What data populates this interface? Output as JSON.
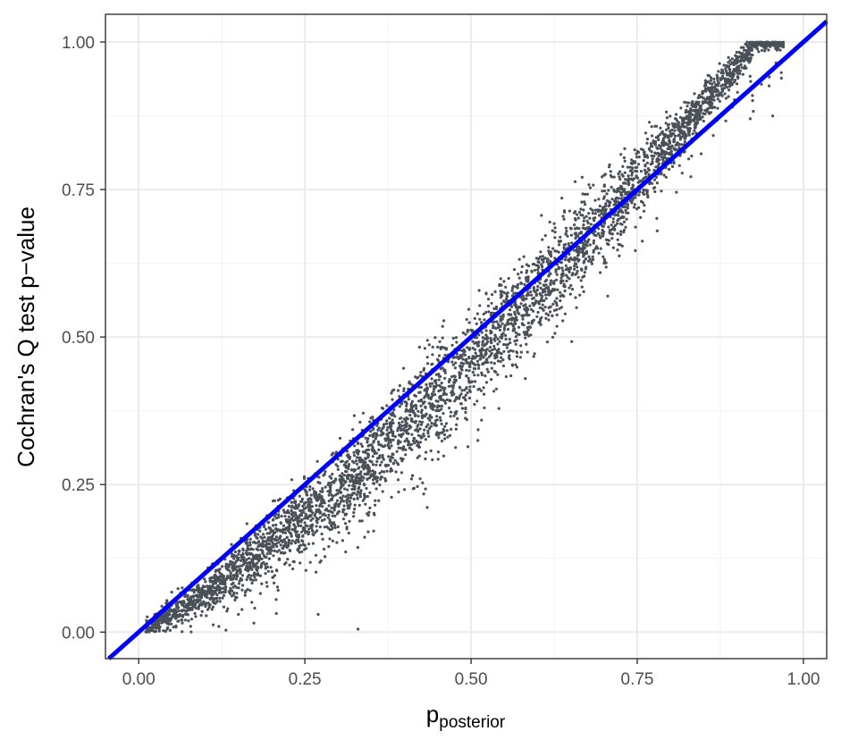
{
  "chart_data": {
    "type": "scatter",
    "title": "",
    "xlabel": {
      "base": "p",
      "subscript": "posterior"
    },
    "ylabel": "Cochran's Q test p−value",
    "xlim": [
      -0.05,
      1.035
    ],
    "ylim": [
      -0.045,
      1.047
    ],
    "x_ticks": [
      0.0,
      0.25,
      0.5,
      0.75,
      1.0
    ],
    "x_tick_labels": [
      "0.00",
      "0.25",
      "0.50",
      "0.75",
      "1.00"
    ],
    "y_ticks": [
      0.0,
      0.25,
      0.5,
      0.75,
      1.0
    ],
    "y_tick_labels": [
      "0.00",
      "0.25",
      "0.50",
      "0.75",
      "1.00"
    ],
    "grid": true,
    "point_color": "#4a5057",
    "reference_line": {
      "type": "abline",
      "slope": 1,
      "intercept": 0,
      "color": "#0000ff"
    },
    "trend": [
      {
        "x": 0.0,
        "y": 0.0
      },
      {
        "x": 0.1,
        "y": 0.065
      },
      {
        "x": 0.2,
        "y": 0.15
      },
      {
        "x": 0.3,
        "y": 0.24
      },
      {
        "x": 0.4,
        "y": 0.345
      },
      {
        "x": 0.5,
        "y": 0.46
      },
      {
        "x": 0.6,
        "y": 0.58
      },
      {
        "x": 0.7,
        "y": 0.7
      },
      {
        "x": 0.8,
        "y": 0.83
      },
      {
        "x": 0.9,
        "y": 0.96
      },
      {
        "x": 0.93,
        "y": 1.0
      }
    ],
    "x_range_points": [
      0.01,
      0.97
    ],
    "point_count": 4500,
    "notable_points": [
      {
        "x": 0.33,
        "y": 0.005
      },
      {
        "x": 0.27,
        "y": 0.03
      },
      {
        "x": 0.92,
        "y": 0.87
      },
      {
        "x": 0.15,
        "y": 0.03
      },
      {
        "x": 0.52,
        "y": 0.38
      },
      {
        "x": 0.78,
        "y": 0.68
      }
    ]
  }
}
